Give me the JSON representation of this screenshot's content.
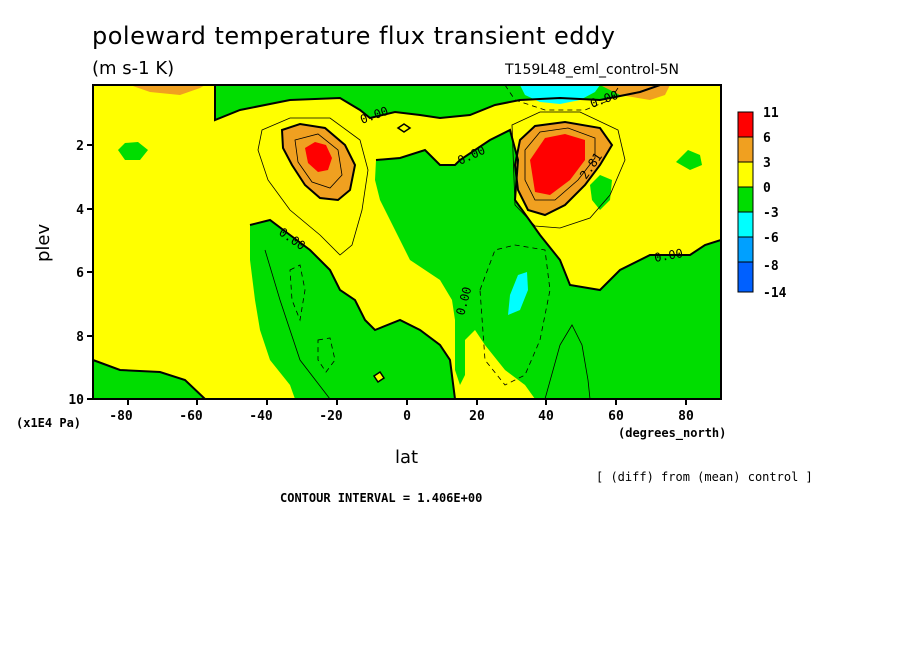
{
  "chart_data": {
    "type": "heatmap",
    "title": "poleward temperature flux transient eddy",
    "units": "(m s-1 K)",
    "run_label": "T159L48_eml_control-5N",
    "xlabel": "lat",
    "ylabel": "plev",
    "x_unit_label": "(degrees_north)",
    "y_unit_label": "(x1E4 Pa)",
    "xlim": [
      -90,
      90
    ],
    "ylim": [
      10,
      0.1
    ],
    "x_ticks": [
      -80,
      -60,
      -40,
      -20,
      0,
      20,
      40,
      60,
      80
    ],
    "x_tick_labels": [
      "-80",
      "-60",
      "-40",
      "-20",
      "0",
      "20",
      "40",
      "60",
      "80"
    ],
    "y_ticks": [
      2,
      4,
      6,
      8,
      10
    ],
    "y_tick_labels": [
      "2",
      "4",
      "6",
      "8",
      "10"
    ],
    "contour_interval_text": "CONTOUR INTERVAL = 1.406E+00",
    "difference_note": "[ (diff) from (mean) control ]",
    "colorbar": {
      "labels": [
        "11",
        "6",
        "3",
        "0",
        "-3",
        "-6",
        "-8",
        "-14"
      ],
      "colors": [
        "#ff0000",
        "#f0a020",
        "#ffff00",
        "#00dd00",
        "#00ffff",
        "#00a0ff",
        "#0060ff"
      ]
    },
    "contour_labels": [
      "0.00",
      "0.00",
      "0.00",
      "0.00",
      "0.00",
      "0.00",
      "2.81",
      "0.00"
    ],
    "features": [
      {
        "kind": "max",
        "lat": -25,
        "plev": 2.3,
        "level": 6
      },
      {
        "kind": "max",
        "lat": 43,
        "plev": 2.7,
        "level": 11
      },
      {
        "kind": "min",
        "lat": 34,
        "plev": 0.3,
        "level": -6
      },
      {
        "kind": "min",
        "lat": 32,
        "plev": 6.8,
        "level": -3
      }
    ]
  },
  "colors": {
    "red": "#ff0000",
    "orange": "#f0a020",
    "yellow": "#ffff00",
    "green": "#00dd00",
    "cyan": "#00ffff",
    "blue": "#00a0ff",
    "darkblue": "#0060ff"
  }
}
